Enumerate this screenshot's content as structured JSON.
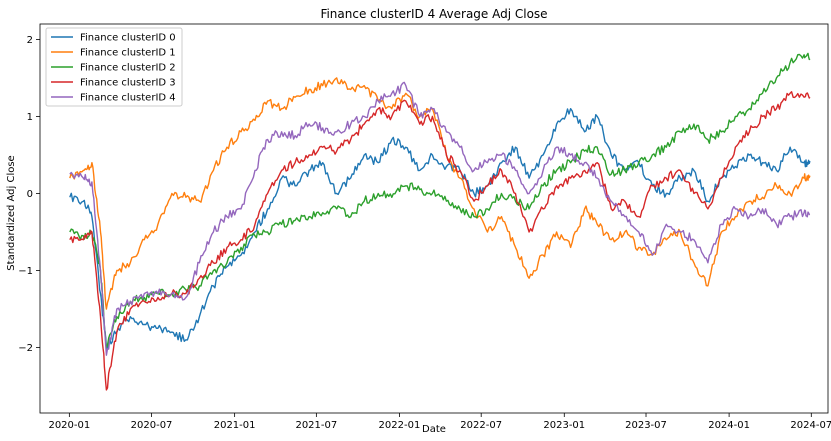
{
  "chart_data": {
    "type": "line",
    "title": "Finance clusterID 4 Average Adj Close",
    "xlabel": "Date",
    "ylabel": "Standardized Adj Close",
    "xlim": [
      "2019-10-28",
      "2024-08-07"
    ],
    "ylim": [
      -2.85,
      2.2
    ],
    "x_ticks": [
      "2020-01",
      "2020-07",
      "2021-01",
      "2021-07",
      "2022-01",
      "2022-07",
      "2023-01",
      "2023-07",
      "2024-01",
      "2024-07"
    ],
    "y_ticks": [
      -2,
      -1,
      0,
      1,
      2
    ],
    "y_tick_labels": [
      "−2",
      "−1",
      "0",
      "1",
      "2"
    ],
    "legend_position": "top-left",
    "grid": false,
    "series": [
      {
        "name": "Finance clusterID 0",
        "color": "#1f77b4",
        "x": [
          "2020-01-02",
          "2020-02-01",
          "2020-02-20",
          "2020-03-10",
          "2020-03-23",
          "2020-04-15",
          "2020-05-15",
          "2020-06-15",
          "2020-07-15",
          "2020-08-15",
          "2020-09-15",
          "2020-10-15",
          "2020-11-15",
          "2020-12-15",
          "2021-01-15",
          "2021-02-15",
          "2021-03-15",
          "2021-04-15",
          "2021-05-15",
          "2021-06-15",
          "2021-07-15",
          "2021-08-15",
          "2021-09-15",
          "2021-10-15",
          "2021-11-15",
          "2021-12-15",
          "2022-01-15",
          "2022-02-15",
          "2022-03-15",
          "2022-04-15",
          "2022-05-15",
          "2022-06-15",
          "2022-07-15",
          "2022-08-15",
          "2022-09-15",
          "2022-10-15",
          "2022-11-15",
          "2022-12-15",
          "2023-01-15",
          "2023-02-15",
          "2023-03-15",
          "2023-04-15",
          "2023-05-15",
          "2023-06-15",
          "2023-07-15",
          "2023-08-15",
          "2023-09-15",
          "2023-10-15",
          "2023-11-15",
          "2023-12-15",
          "2024-01-15",
          "2024-02-15",
          "2024-03-15",
          "2024-04-15",
          "2024-05-15",
          "2024-06-15",
          "2024-06-28"
        ],
        "values": [
          -0.05,
          -0.1,
          -0.3,
          -1.3,
          -2.0,
          -1.8,
          -1.6,
          -1.7,
          -1.75,
          -1.8,
          -1.9,
          -1.6,
          -1.2,
          -0.95,
          -0.8,
          -0.5,
          -0.2,
          0.2,
          0.1,
          0.3,
          0.4,
          0.0,
          0.2,
          0.5,
          0.4,
          0.7,
          0.6,
          0.3,
          0.5,
          0.35,
          0.3,
          0.0,
          0.1,
          0.4,
          0.6,
          0.2,
          0.5,
          0.9,
          1.1,
          0.8,
          1.0,
          0.5,
          0.3,
          0.4,
          0.1,
          0.0,
          0.2,
          0.3,
          -0.1,
          0.2,
          0.35,
          0.5,
          0.4,
          0.3,
          0.6,
          0.4,
          0.42
        ]
      },
      {
        "name": "Finance clusterID 1",
        "color": "#ff7f0e",
        "x": [
          "2020-01-02",
          "2020-02-01",
          "2020-02-20",
          "2020-03-10",
          "2020-03-23",
          "2020-04-15",
          "2020-05-15",
          "2020-06-15",
          "2020-07-15",
          "2020-08-15",
          "2020-09-15",
          "2020-10-15",
          "2020-11-15",
          "2020-12-15",
          "2021-01-15",
          "2021-02-15",
          "2021-03-15",
          "2021-04-15",
          "2021-05-15",
          "2021-06-15",
          "2021-07-15",
          "2021-08-15",
          "2021-09-15",
          "2021-10-15",
          "2021-11-15",
          "2021-12-15",
          "2022-01-15",
          "2022-02-15",
          "2022-03-15",
          "2022-04-15",
          "2022-05-15",
          "2022-06-15",
          "2022-07-15",
          "2022-08-15",
          "2022-09-15",
          "2022-10-15",
          "2022-11-15",
          "2022-12-15",
          "2023-01-15",
          "2023-02-15",
          "2023-03-15",
          "2023-04-15",
          "2023-05-15",
          "2023-06-15",
          "2023-07-15",
          "2023-08-15",
          "2023-09-15",
          "2023-10-15",
          "2023-11-15",
          "2023-12-15",
          "2024-01-15",
          "2024-02-15",
          "2024-03-15",
          "2024-04-15",
          "2024-05-15",
          "2024-06-15",
          "2024-06-28"
        ],
        "values": [
          0.2,
          0.3,
          0.4,
          -0.5,
          -1.5,
          -1.0,
          -0.9,
          -0.6,
          -0.4,
          0.0,
          -0.05,
          -0.1,
          0.3,
          0.6,
          0.8,
          0.95,
          1.2,
          1.1,
          1.25,
          1.35,
          1.4,
          1.5,
          1.35,
          1.4,
          1.2,
          1.1,
          1.3,
          1.0,
          1.1,
          0.5,
          0.2,
          -0.2,
          -0.5,
          -0.3,
          -0.7,
          -1.1,
          -0.8,
          -0.5,
          -0.7,
          -0.2,
          -0.4,
          -0.6,
          -0.5,
          -0.7,
          -0.8,
          -0.6,
          -0.5,
          -0.9,
          -1.2,
          -0.5,
          -0.3,
          -0.1,
          -0.05,
          0.1,
          0.0,
          0.2,
          0.23
        ]
      },
      {
        "name": "Finance clusterID 2",
        "color": "#2ca02c",
        "x": [
          "2020-01-02",
          "2020-02-01",
          "2020-02-20",
          "2020-03-10",
          "2020-03-23",
          "2020-04-15",
          "2020-05-15",
          "2020-06-15",
          "2020-07-15",
          "2020-08-15",
          "2020-09-15",
          "2020-10-15",
          "2020-11-15",
          "2020-12-15",
          "2021-01-15",
          "2021-02-15",
          "2021-03-15",
          "2021-04-15",
          "2021-05-15",
          "2021-06-15",
          "2021-07-15",
          "2021-08-15",
          "2021-09-15",
          "2021-10-15",
          "2021-11-15",
          "2021-12-15",
          "2022-01-15",
          "2022-02-15",
          "2022-03-15",
          "2022-04-15",
          "2022-05-15",
          "2022-06-15",
          "2022-07-15",
          "2022-08-15",
          "2022-09-15",
          "2022-10-15",
          "2022-11-15",
          "2022-12-15",
          "2023-01-15",
          "2023-02-15",
          "2023-03-15",
          "2023-04-15",
          "2023-05-15",
          "2023-06-15",
          "2023-07-15",
          "2023-08-15",
          "2023-09-15",
          "2023-10-15",
          "2023-11-15",
          "2023-12-15",
          "2024-01-15",
          "2024-02-15",
          "2024-03-15",
          "2024-04-15",
          "2024-05-15",
          "2024-06-15",
          "2024-06-28"
        ],
        "values": [
          -0.5,
          -0.55,
          -0.5,
          -1.0,
          -2.0,
          -1.6,
          -1.4,
          -1.35,
          -1.3,
          -1.3,
          -1.25,
          -1.2,
          -1.0,
          -0.9,
          -0.7,
          -0.55,
          -0.5,
          -0.4,
          -0.35,
          -0.3,
          -0.25,
          -0.2,
          -0.3,
          -0.1,
          0.0,
          -0.05,
          0.1,
          0.05,
          0.0,
          -0.1,
          -0.2,
          -0.3,
          -0.2,
          0.0,
          -0.1,
          -0.2,
          0.1,
          0.3,
          0.4,
          0.55,
          0.6,
          0.25,
          0.3,
          0.4,
          0.5,
          0.6,
          0.8,
          0.9,
          0.7,
          0.8,
          1.0,
          1.1,
          1.3,
          1.5,
          1.7,
          1.8,
          1.75
        ]
      },
      {
        "name": "Finance clusterID 3",
        "color": "#d62728",
        "x": [
          "2020-01-02",
          "2020-02-01",
          "2020-02-20",
          "2020-03-10",
          "2020-03-23",
          "2020-04-15",
          "2020-05-15",
          "2020-06-15",
          "2020-07-15",
          "2020-08-15",
          "2020-09-15",
          "2020-10-15",
          "2020-11-15",
          "2020-12-15",
          "2021-01-15",
          "2021-02-15",
          "2021-03-15",
          "2021-04-15",
          "2021-05-15",
          "2021-06-15",
          "2021-07-15",
          "2021-08-15",
          "2021-09-15",
          "2021-10-15",
          "2021-11-15",
          "2021-12-15",
          "2022-01-15",
          "2022-02-15",
          "2022-03-15",
          "2022-04-15",
          "2022-05-15",
          "2022-06-15",
          "2022-07-15",
          "2022-08-15",
          "2022-09-15",
          "2022-10-15",
          "2022-11-15",
          "2022-12-15",
          "2023-01-15",
          "2023-02-15",
          "2023-03-15",
          "2023-04-15",
          "2023-05-15",
          "2023-06-15",
          "2023-07-15",
          "2023-08-15",
          "2023-09-15",
          "2023-10-15",
          "2023-11-15",
          "2023-12-15",
          "2024-01-15",
          "2024-02-15",
          "2024-03-15",
          "2024-04-15",
          "2024-05-15",
          "2024-06-15",
          "2024-06-28"
        ],
        "values": [
          -0.6,
          -0.6,
          -0.5,
          -1.6,
          -2.55,
          -1.8,
          -1.5,
          -1.4,
          -1.35,
          -1.3,
          -1.3,
          -1.1,
          -0.9,
          -0.7,
          -0.6,
          -0.4,
          0.0,
          0.3,
          0.4,
          0.5,
          0.6,
          0.55,
          0.7,
          0.9,
          1.1,
          1.0,
          1.2,
          0.9,
          1.0,
          0.5,
          0.3,
          -0.1,
          0.1,
          0.3,
          0.0,
          -0.5,
          -0.2,
          0.1,
          0.2,
          0.3,
          0.4,
          -0.2,
          -0.1,
          -0.3,
          0.1,
          0.2,
          0.3,
          0.0,
          -0.2,
          0.2,
          0.6,
          0.8,
          1.0,
          1.1,
          1.3,
          1.25,
          1.25
        ]
      },
      {
        "name": "Finance clusterID 4",
        "color": "#9467bd",
        "x": [
          "2020-01-02",
          "2020-02-01",
          "2020-02-20",
          "2020-03-10",
          "2020-03-23",
          "2020-04-15",
          "2020-05-15",
          "2020-06-15",
          "2020-07-15",
          "2020-08-15",
          "2020-09-15",
          "2020-10-15",
          "2020-11-15",
          "2020-12-15",
          "2021-01-15",
          "2021-02-15",
          "2021-03-15",
          "2021-04-15",
          "2021-05-15",
          "2021-06-15",
          "2021-07-15",
          "2021-08-15",
          "2021-09-15",
          "2021-10-15",
          "2021-11-15",
          "2021-12-15",
          "2022-01-15",
          "2022-02-15",
          "2022-03-15",
          "2022-04-15",
          "2022-05-15",
          "2022-06-15",
          "2022-07-15",
          "2022-08-15",
          "2022-09-15",
          "2022-10-15",
          "2022-11-15",
          "2022-12-15",
          "2023-01-15",
          "2023-02-15",
          "2023-03-15",
          "2023-04-15",
          "2023-05-15",
          "2023-06-15",
          "2023-07-15",
          "2023-08-15",
          "2023-09-15",
          "2023-10-15",
          "2023-11-15",
          "2023-12-15",
          "2024-01-15",
          "2024-02-15",
          "2024-03-15",
          "2024-04-15",
          "2024-05-15",
          "2024-06-15",
          "2024-06-28"
        ],
        "values": [
          0.25,
          0.2,
          0.15,
          -1.0,
          -2.1,
          -1.5,
          -1.4,
          -1.3,
          -1.3,
          -1.3,
          -1.35,
          -0.9,
          -0.5,
          -0.3,
          -0.2,
          0.3,
          0.7,
          0.8,
          0.75,
          0.9,
          0.85,
          0.8,
          0.9,
          1.0,
          1.2,
          1.3,
          1.4,
          1.0,
          1.1,
          0.8,
          0.6,
          0.3,
          0.4,
          0.5,
          0.3,
          0.0,
          0.3,
          0.6,
          0.5,
          0.4,
          0.2,
          -0.1,
          -0.3,
          -0.5,
          -0.8,
          -0.4,
          -0.5,
          -0.6,
          -0.9,
          -0.4,
          -0.2,
          -0.3,
          -0.2,
          -0.4,
          -0.3,
          -0.25,
          -0.27
        ]
      }
    ]
  }
}
